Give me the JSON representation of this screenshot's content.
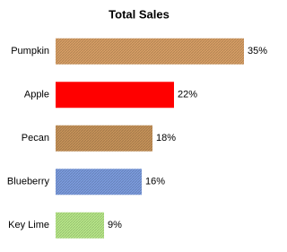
{
  "chart_data": {
    "type": "bar",
    "orientation": "horizontal",
    "title": "Total Sales",
    "categories": [
      "Pumpkin",
      "Apple",
      "Pecan",
      "Blueberry",
      "Key Lime"
    ],
    "values": [
      35,
      22,
      18,
      16,
      9
    ],
    "value_labels": [
      "35%",
      "22%",
      "18%",
      "16%",
      "9%"
    ],
    "colors": [
      "#d9a066",
      "#ff0000",
      "#c8945a",
      "#7d9de0",
      "#b9ea8a"
    ]
  }
}
